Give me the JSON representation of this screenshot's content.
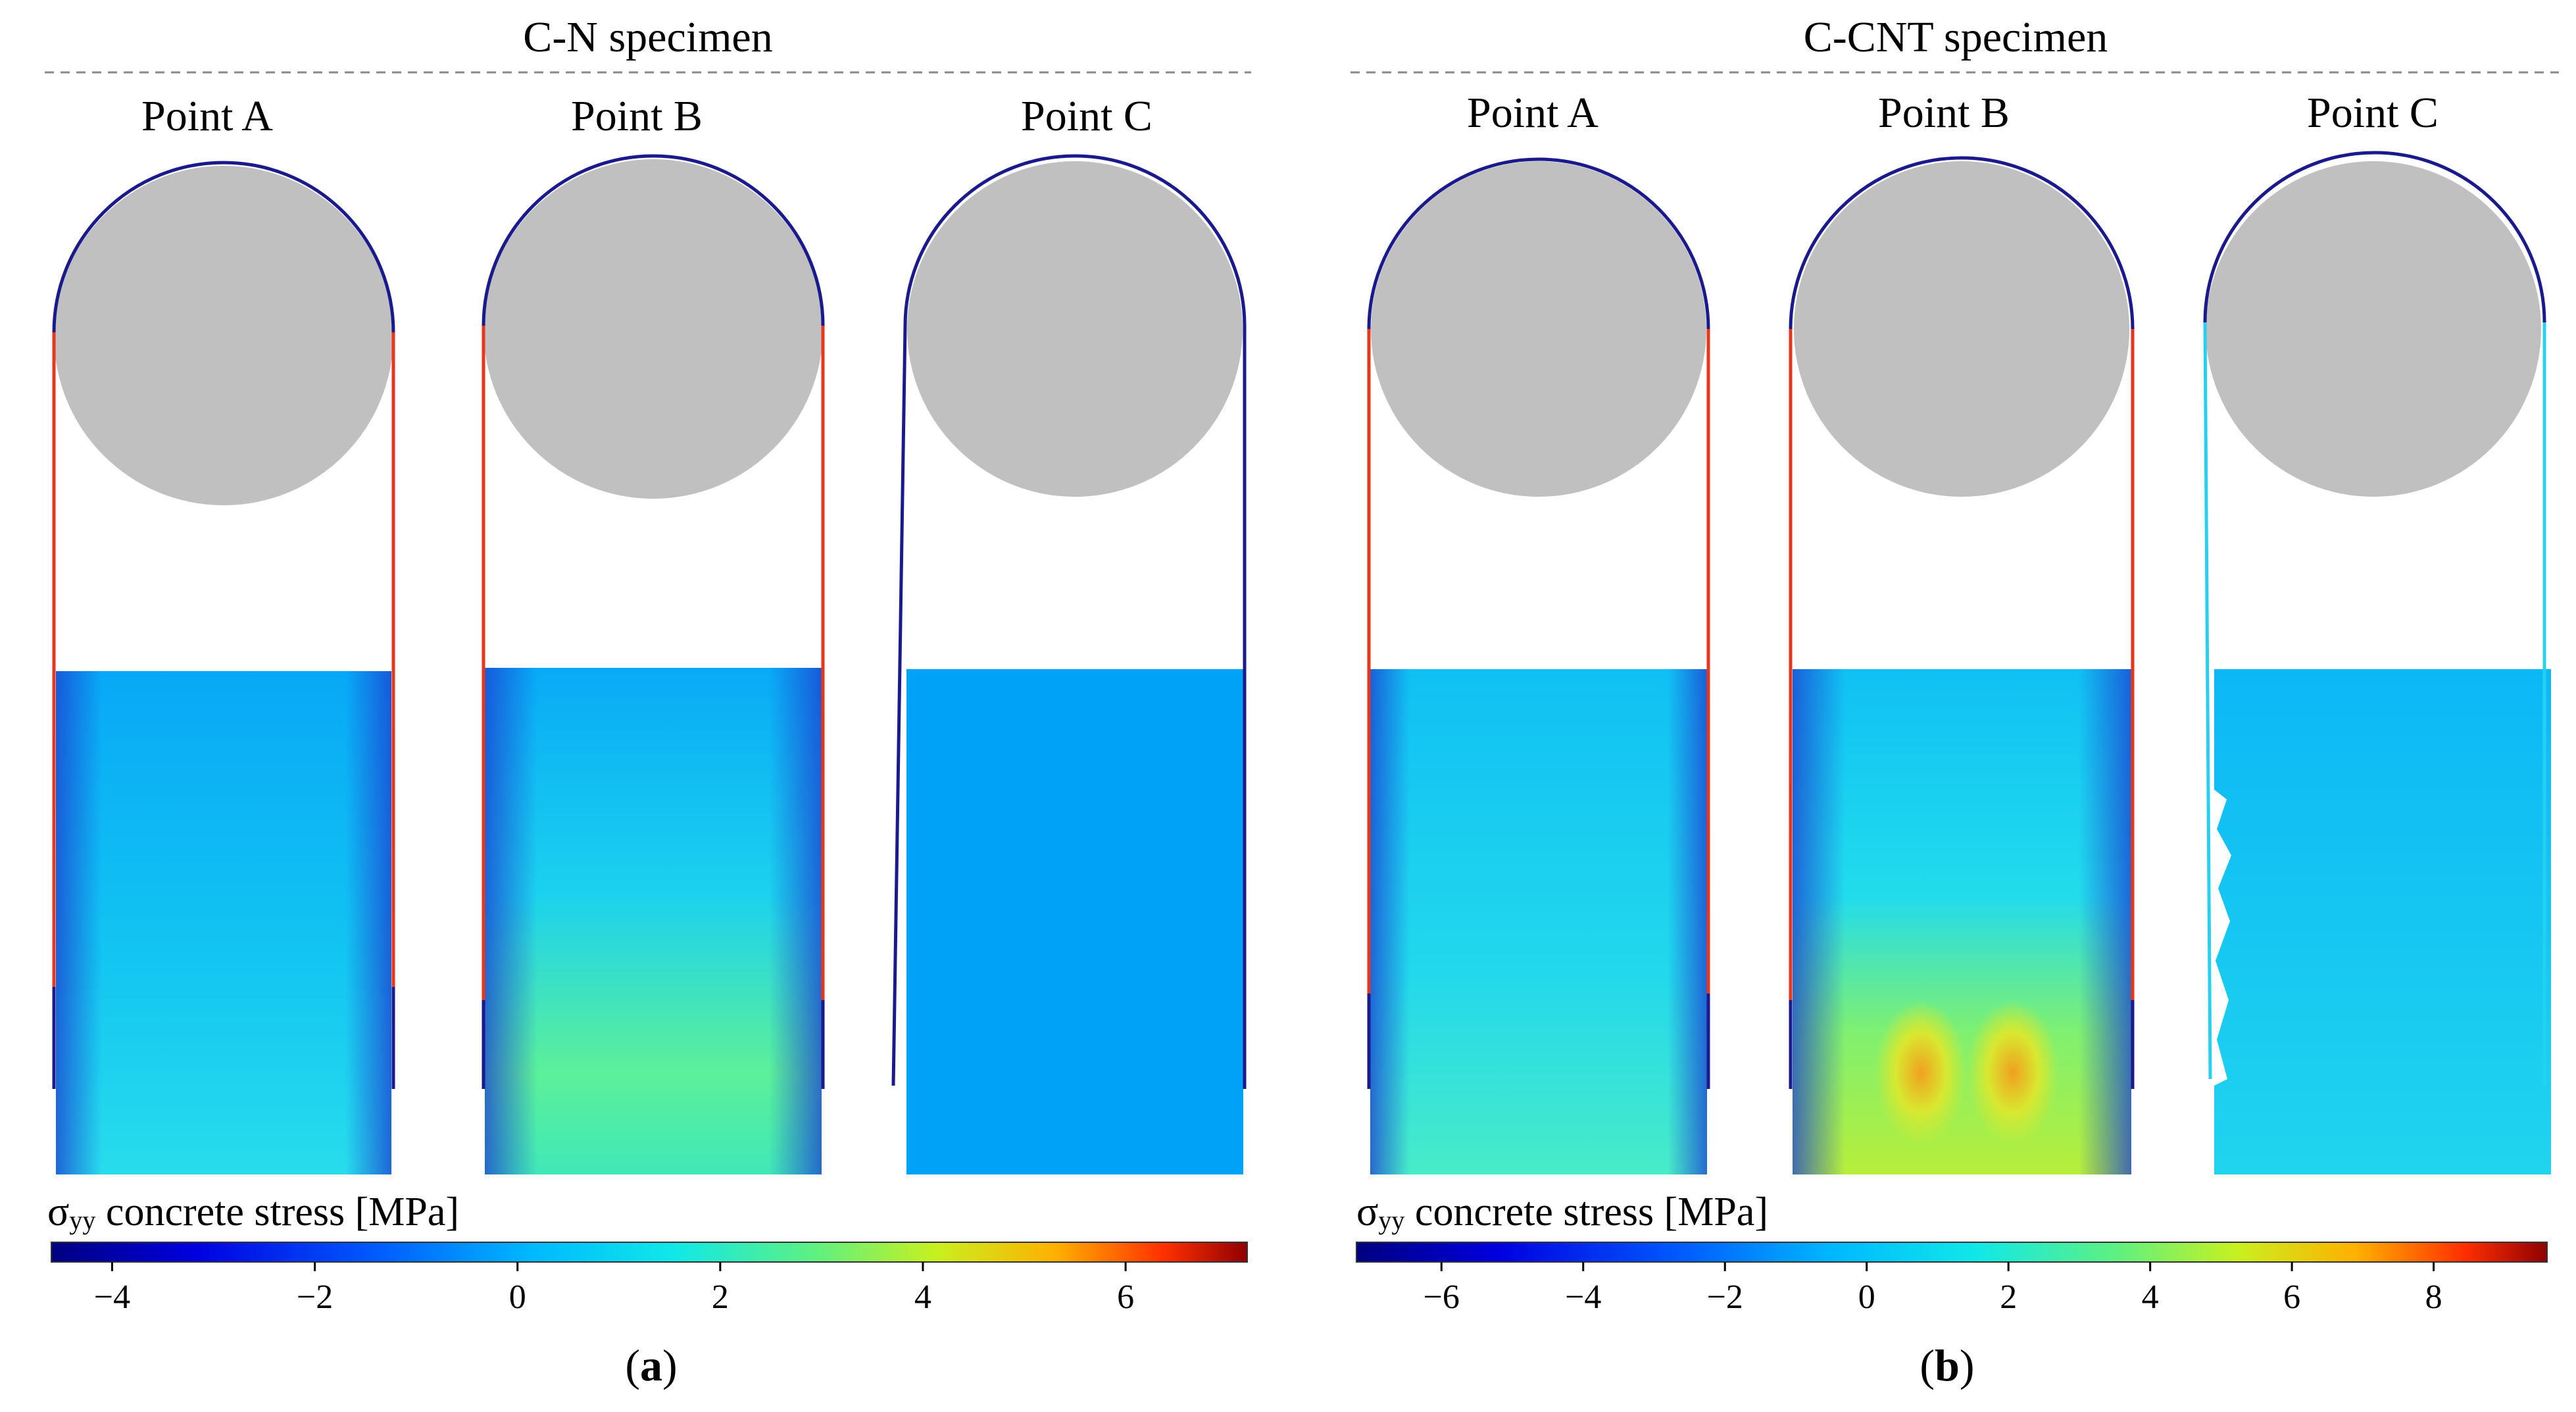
{
  "panels": [
    {
      "id": "a",
      "title": "C-N specimen",
      "caption_prefix": "(",
      "caption_letter": "a",
      "caption_suffix": ")",
      "points": [
        "Point A",
        "Point B",
        "Point C"
      ],
      "colorbar": {
        "label_sigma": "σ",
        "label_sub": "yy",
        "label_rest": " concrete stress [MPa]",
        "min": -4.6,
        "max": 7.2,
        "ticks": [
          {
            "value": -4,
            "label": "−4"
          },
          {
            "value": -2,
            "label": "−2"
          },
          {
            "value": 0,
            "label": "0"
          },
          {
            "value": 2,
            "label": "2"
          },
          {
            "value": 4,
            "label": "4"
          },
          {
            "value": 6,
            "label": "6"
          }
        ]
      }
    },
    {
      "id": "b",
      "title": "C-CNT specimen",
      "caption_prefix": "(",
      "caption_letter": "b",
      "caption_suffix": ")",
      "points": [
        "Point A",
        "Point B",
        "Point C"
      ],
      "colorbar": {
        "label_sigma": "σ",
        "label_sub": "yy",
        "label_rest": " concrete stress [MPa]",
        "min": -7.2,
        "max": 9.6,
        "ticks": [
          {
            "value": -6,
            "label": "−6"
          },
          {
            "value": -4,
            "label": "−4"
          },
          {
            "value": -2,
            "label": "−2"
          },
          {
            "value": 0,
            "label": "0"
          },
          {
            "value": 2,
            "label": "2"
          },
          {
            "value": 4,
            "label": "4"
          },
          {
            "value": 6,
            "label": "6"
          },
          {
            "value": 8,
            "label": "8"
          }
        ]
      }
    }
  ],
  "colors": {
    "indenter": "#c0c0c0",
    "outline": "#1a1a8c",
    "side_red": "#e8361c",
    "block_blue": "#00a0f8",
    "block_cyan": "#1fd2ef",
    "block_green": "#5cf09a",
    "block_yellow": "#b8ee3a",
    "block_orange": "#f0a020",
    "dashed_line": "#888888"
  }
}
